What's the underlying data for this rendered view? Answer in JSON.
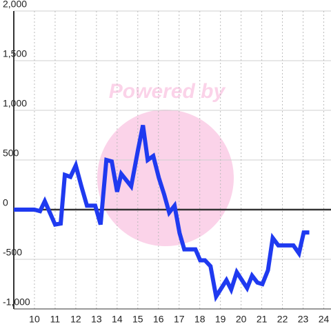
{
  "chart_data": {
    "type": "line",
    "watermark": "Powered by",
    "x": [
      9,
      10,
      10.27,
      10.5,
      11,
      11.27,
      11.47,
      11.74,
      12,
      12.27,
      12.54,
      12.94,
      13.2,
      13.48,
      13.74,
      14,
      14.2,
      14.68,
      15.01,
      15.25,
      15.48,
      15.75,
      16.02,
      16.28,
      16.52,
      16.78,
      17.02,
      17.25,
      17.79,
      18.02,
      18.25,
      18.52,
      18.79,
      19.29,
      19.52,
      19.79,
      20.29,
      20.53,
      20.79,
      21.03,
      21.3,
      21.53,
      21.8,
      22.53,
      22.8,
      23.03,
      23.3
    ],
    "series": [
      {
        "color": "#1f3af0",
        "values": [
          0,
          0,
          -15,
          85,
          -150,
          -140,
          350,
          330,
          445,
          235,
          40,
          40,
          -150,
          500,
          485,
          180,
          360,
          235,
          600,
          850,
          500,
          540,
          320,
          150,
          -30,
          40,
          -235,
          -400,
          -400,
          -510,
          -510,
          -570,
          -875,
          -710,
          -805,
          -630,
          -790,
          -665,
          -735,
          -750,
          -610,
          -285,
          -360,
          -360,
          -440,
          -230,
          -230
        ]
      }
    ],
    "xlim": [
      9,
      24.35
    ],
    "xticks": [
      10,
      11,
      12,
      13,
      14,
      15,
      16,
      17,
      18,
      19,
      20,
      21,
      22,
      23,
      24
    ],
    "ylim": [
      -1000,
      2000
    ],
    "yticks": [
      {
        "value": -1000,
        "label": "-1,000"
      },
      -500,
      0,
      500,
      {
        "value": 1000,
        "label": "1,000"
      },
      {
        "value": 1500,
        "label": "1,500"
      },
      {
        "value": 2000,
        "label": "2,000"
      }
    ],
    "grid": true
  }
}
